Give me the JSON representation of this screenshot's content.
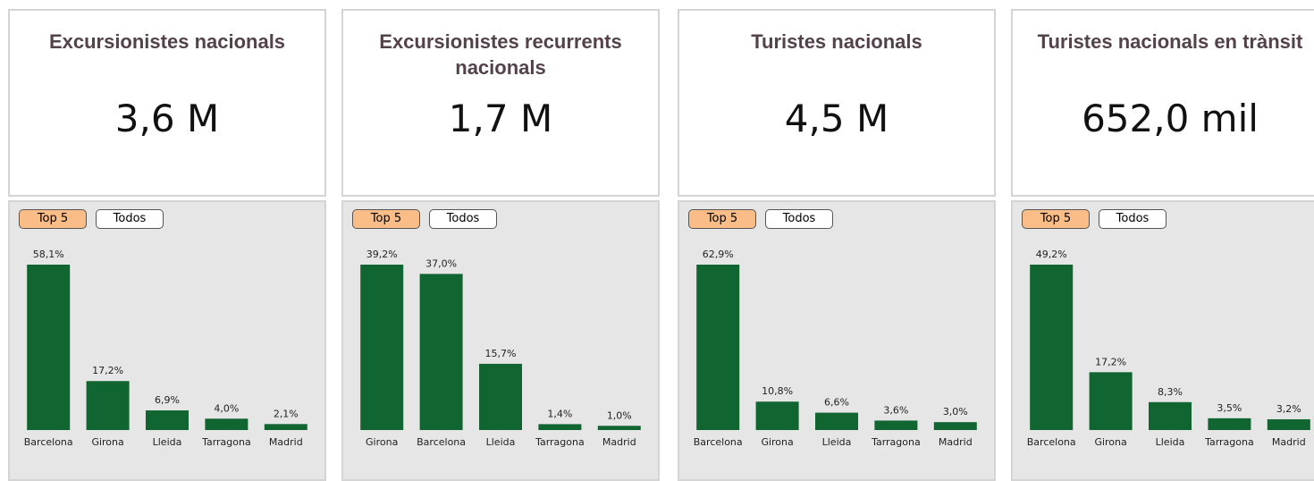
{
  "chart_data": [
    {
      "type": "bar",
      "title": "Excursionistes nacionals",
      "kpi": "3,6 M",
      "buttons": [
        "Top 5",
        "Todos"
      ],
      "color": "#116530",
      "categories": [
        "Barcelona",
        "Girona",
        "Lleida",
        "Tarragona",
        "Madrid"
      ],
      "values": [
        58.1,
        17.2,
        6.9,
        4.0,
        2.1
      ],
      "value_labels": [
        "58,1%",
        "17,2%",
        "6,9%",
        "4,0%",
        "2,1%"
      ]
    },
    {
      "type": "bar",
      "title": "Excursionistes recurrents nacionals",
      "kpi": "1,7 M",
      "buttons": [
        "Top 5",
        "Todos"
      ],
      "color": "#116530",
      "categories": [
        "Girona",
        "Barcelona",
        "Lleida",
        "Tarragona",
        "Madrid"
      ],
      "values": [
        39.2,
        37.0,
        15.7,
        1.4,
        1.0
      ],
      "value_labels": [
        "39,2%",
        "37,0%",
        "15,7%",
        "1,4%",
        "1,0%"
      ]
    },
    {
      "type": "bar",
      "title": "Turistes nacionals",
      "kpi": "4,5 M",
      "buttons": [
        "Top 5",
        "Todos"
      ],
      "color": "#116530",
      "categories": [
        "Barcelona",
        "Girona",
        "Lleida",
        "Tarragona",
        "Madrid"
      ],
      "values": [
        62.9,
        10.8,
        6.6,
        3.6,
        3.0
      ],
      "value_labels": [
        "62,9%",
        "10,8%",
        "6,6%",
        "3,6%",
        "3,0%"
      ]
    },
    {
      "type": "bar",
      "title": "Turistes nacionals en trànsit",
      "kpi": "652,0 mil",
      "buttons": [
        "Top 5",
        "Todos"
      ],
      "color": "#116530",
      "categories": [
        "Barcelona",
        "Girona",
        "Lleida",
        "Tarragona",
        "Madrid"
      ],
      "values": [
        49.2,
        17.2,
        8.3,
        3.5,
        3.2
      ],
      "value_labels": [
        "49,2%",
        "17,2%",
        "8,3%",
        "3,5%",
        "3,2%"
      ]
    }
  ]
}
